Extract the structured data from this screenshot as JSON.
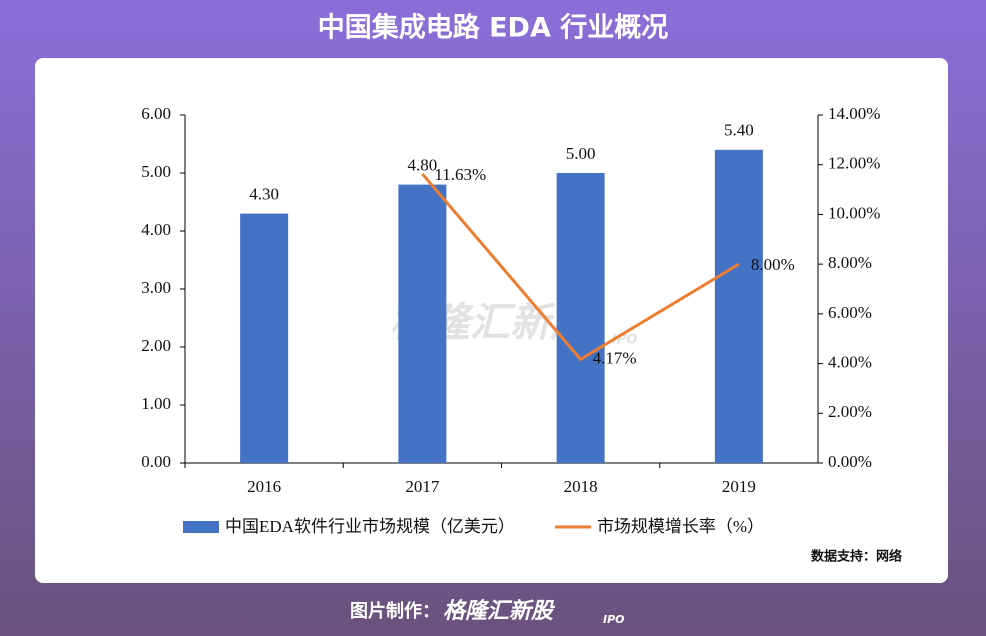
{
  "title": "中国集成电路 EDA 行业概况",
  "chart_data": {
    "type": "bar",
    "categories": [
      "2016",
      "2017",
      "2018",
      "2019"
    ],
    "series": [
      {
        "name": "中国EDA软件行业市场规模（亿美元）",
        "type": "bar",
        "color": "#4472c4",
        "values": [
          4.3,
          4.8,
          5.0,
          5.4
        ],
        "value_labels": [
          "4.30",
          "4.80",
          "5.00",
          "5.40"
        ]
      },
      {
        "name": "市场规模增长率（%）",
        "type": "line",
        "axis": "y2",
        "color": "#ed7d31",
        "values": [
          null,
          11.63,
          4.17,
          8.0
        ],
        "value_labels": [
          null,
          "11.63%",
          "4.17%",
          "8.00%"
        ]
      }
    ],
    "ylim": [
      0,
      6
    ],
    "yticks": [
      {
        "value": 0,
        "label": "0.00"
      },
      {
        "value": 1,
        "label": "1.00"
      },
      {
        "value": 2,
        "label": "2.00"
      },
      {
        "value": 3,
        "label": "3.00"
      },
      {
        "value": 4,
        "label": "4.00"
      },
      {
        "value": 5,
        "label": "5.00"
      },
      {
        "value": 6,
        "label": "6.00"
      }
    ],
    "y2lim": [
      0,
      14
    ],
    "y2ticks": [
      {
        "value": 0,
        "label": "0.00%"
      },
      {
        "value": 2,
        "label": "2.00%"
      },
      {
        "value": 4,
        "label": "4.00%"
      },
      {
        "value": 6,
        "label": "6.00%"
      },
      {
        "value": 8,
        "label": "8.00%"
      },
      {
        "value": 10,
        "label": "10.00%"
      },
      {
        "value": 12,
        "label": "12.00%"
      },
      {
        "value": 14,
        "label": "14.00%"
      }
    ]
  },
  "source": "数据支持：网络",
  "watermark": {
    "brand": "格隆汇新股",
    "sub": "IPO"
  },
  "footer": {
    "label": "图片制作：",
    "brand": "格隆汇新股",
    "sub": "IPO"
  }
}
